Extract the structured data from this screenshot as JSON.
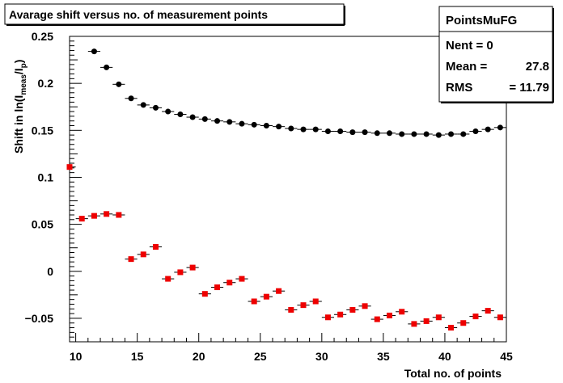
{
  "chart_data": {
    "type": "scatter",
    "title": "Avarage shift versus no. of measurement points",
    "xlabel": "Total no. of points",
    "ylabel": "Shift in ln(I_meas/I_p)",
    "ylabel_main": "Shift in ln(I",
    "ylabel_sub1": "meas",
    "ylabel_mid": "/I",
    "ylabel_sub2": "p",
    "ylabel_end": ")",
    "xlim": [
      9.5,
      45
    ],
    "ylim": [
      -0.075,
      0.25
    ],
    "xticks": [
      10,
      15,
      20,
      25,
      30,
      35,
      40,
      45
    ],
    "yticks": [
      -0.05,
      0,
      0.05,
      0.1,
      0.15,
      0.2,
      0.25
    ],
    "ytick_labels": [
      "−0.05",
      "0",
      "0.05",
      "0.1",
      "0.15",
      "0.2",
      "0.25"
    ],
    "stats_box": {
      "title": "PointsMuFG",
      "nent_label": "Nent = 0",
      "mean_label": "Mean  =",
      "mean_value": "27.8",
      "rms_label": "RMS",
      "rms_value": "=  11.79"
    },
    "series": [
      {
        "color": "#000000",
        "marker": "circle",
        "x": [
          11.5,
          12.5,
          13.5,
          14.5,
          15.5,
          16.5,
          17.5,
          18.5,
          19.5,
          20.5,
          21.5,
          22.5,
          23.5,
          24.5,
          25.5,
          26.5,
          27.5,
          28.5,
          29.5,
          30.5,
          31.5,
          32.5,
          33.5,
          34.5,
          35.5,
          36.5,
          37.5,
          38.5,
          39.5,
          40.5,
          41.5,
          42.5,
          43.5,
          44.5
        ],
        "y": [
          0.234,
          0.217,
          0.199,
          0.184,
          0.177,
          0.174,
          0.17,
          0.167,
          0.164,
          0.162,
          0.16,
          0.159,
          0.157,
          0.156,
          0.155,
          0.154,
          0.152,
          0.151,
          0.151,
          0.149,
          0.149,
          0.148,
          0.148,
          0.147,
          0.147,
          0.146,
          0.146,
          0.146,
          0.145,
          0.146,
          0.146,
          0.149,
          0.151,
          0.153
        ]
      },
      {
        "color": "#ee0000",
        "marker": "square",
        "x": [
          9.5,
          10.5,
          11.5,
          12.5,
          13.5,
          14.5,
          15.5,
          16.5,
          17.5,
          18.5,
          19.5,
          20.5,
          21.5,
          22.5,
          23.5,
          24.5,
          25.5,
          26.5,
          27.5,
          28.5,
          29.5,
          30.5,
          31.5,
          32.5,
          33.5,
          34.5,
          35.5,
          36.5,
          37.5,
          38.5,
          39.5,
          40.5,
          41.5,
          42.5,
          43.5,
          44.5
        ],
        "y": [
          0.111,
          0.056,
          0.059,
          0.061,
          0.06,
          0.013,
          0.018,
          0.026,
          -0.008,
          -0.001,
          0.004,
          -0.024,
          -0.017,
          -0.012,
          -0.008,
          -0.032,
          -0.027,
          -0.021,
          -0.041,
          -0.036,
          -0.032,
          -0.049,
          -0.046,
          -0.041,
          -0.037,
          -0.051,
          -0.047,
          -0.043,
          -0.056,
          -0.053,
          -0.049,
          -0.06,
          -0.055,
          -0.048,
          -0.042,
          -0.049
        ]
      }
    ]
  }
}
